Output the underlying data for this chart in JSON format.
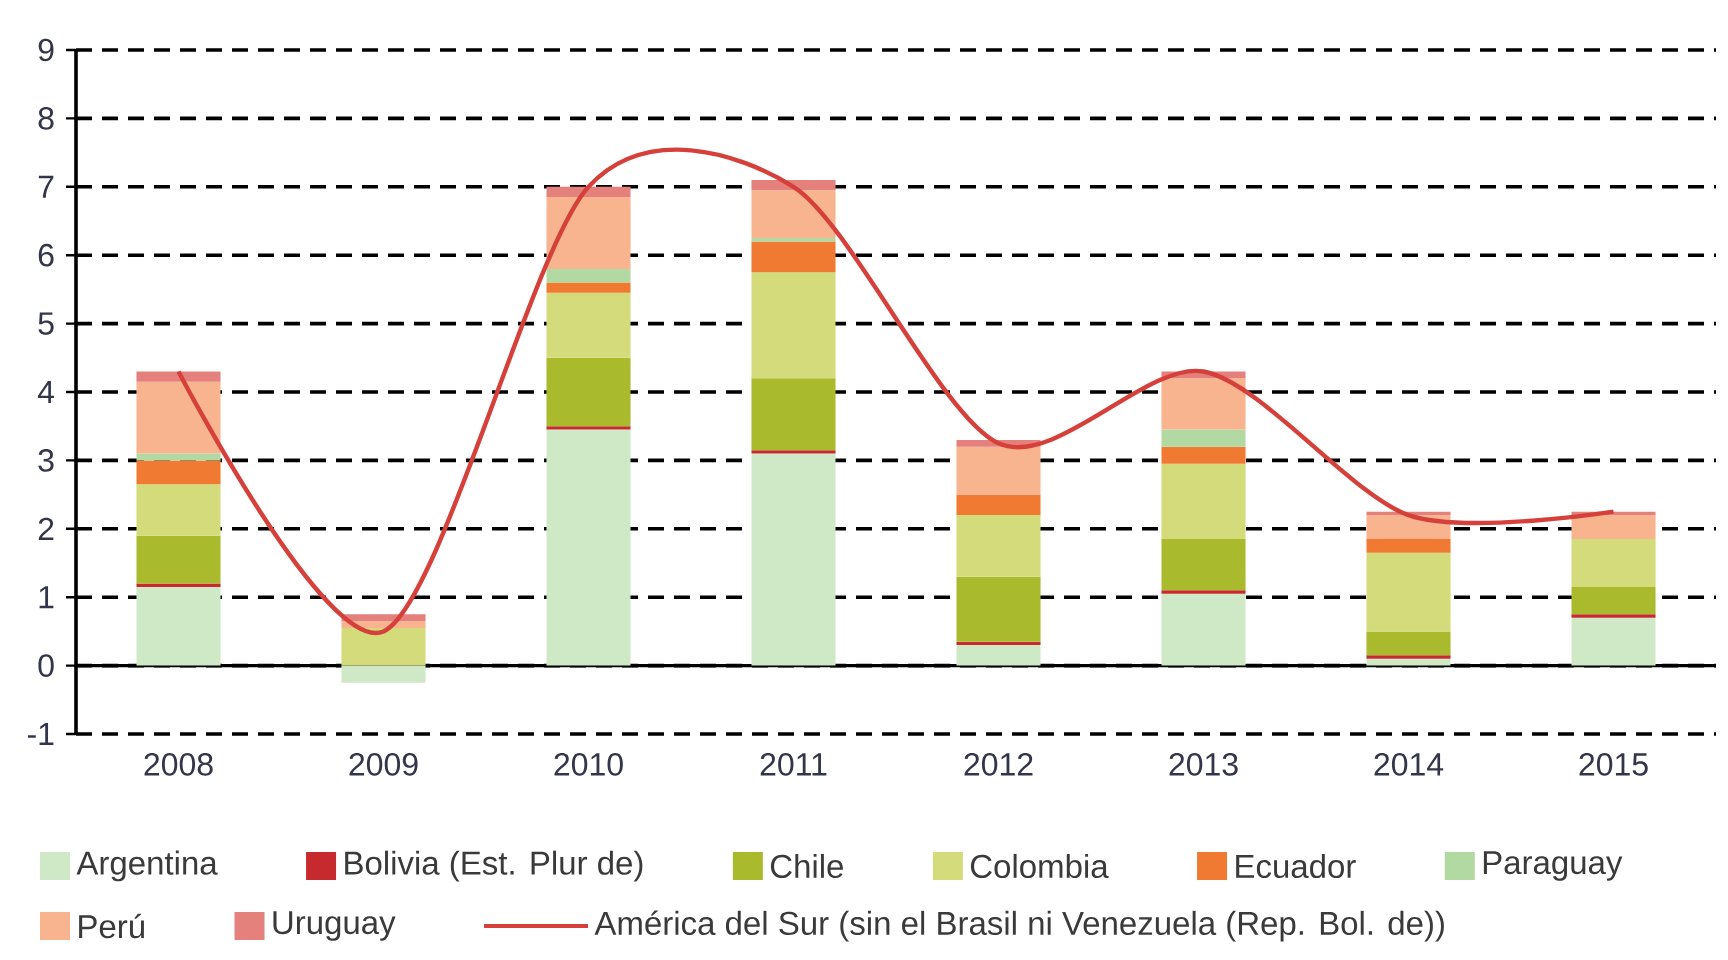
{
  "chart_data": {
    "type": "bar",
    "stacked": true,
    "categories": [
      "2008",
      "2009",
      "2010",
      "2011",
      "2012",
      "2013",
      "2014",
      "2015"
    ],
    "series": [
      {
        "name": "Argentina",
        "color": "#cfe9c6",
        "values": [
          1.15,
          -0.25,
          3.45,
          3.1,
          0.3,
          1.05,
          0.1,
          0.7
        ]
      },
      {
        "name": "Bolivia (Est. Plur de)",
        "color": "#c62a2f",
        "values": [
          0.05,
          0,
          0.05,
          0.05,
          0.05,
          0.05,
          0.05,
          0.05
        ]
      },
      {
        "name": "Chile",
        "color": "#a9ba2c",
        "values": [
          0.7,
          0,
          1.0,
          1.05,
          0.95,
          0.75,
          0.35,
          0.4
        ]
      },
      {
        "name": "Colombia",
        "color": "#d3db7a",
        "values": [
          0.75,
          0.55,
          0.95,
          1.55,
          0.9,
          1.1,
          1.15,
          0.7
        ]
      },
      {
        "name": "Ecuador",
        "color": "#f07a32",
        "values": [
          0.35,
          0,
          0.15,
          0.45,
          0.3,
          0.25,
          0.2,
          0
        ]
      },
      {
        "name": "Paraguay",
        "color": "#b3d9a2",
        "values": [
          0.1,
          0,
          0.2,
          0.05,
          0,
          0.25,
          0,
          0
        ]
      },
      {
        "name": "Perú",
        "color": "#f7b48e",
        "values": [
          1.05,
          0.1,
          1.05,
          0.7,
          0.7,
          0.75,
          0.35,
          0.35
        ]
      },
      {
        "name": "Uruguay",
        "color": "#e4817d",
        "values": [
          0.15,
          0.1,
          0.15,
          0.15,
          0.1,
          0.1,
          0.05,
          0.05
        ]
      },
      {
        "name": "América del Sur (sin el Brasil ni Venezuela (Rep. Bol. de))",
        "type": "line",
        "color": "#d6403b",
        "values": [
          4.3,
          0.5,
          7.0,
          7.0,
          3.25,
          4.3,
          2.2,
          2.25
        ]
      }
    ],
    "ylim": [
      -1,
      9
    ],
    "yticks": [
      -1,
      0,
      1,
      2,
      3,
      4,
      5,
      6,
      7,
      8,
      9
    ],
    "grid": "y",
    "legend": "bottom"
  }
}
